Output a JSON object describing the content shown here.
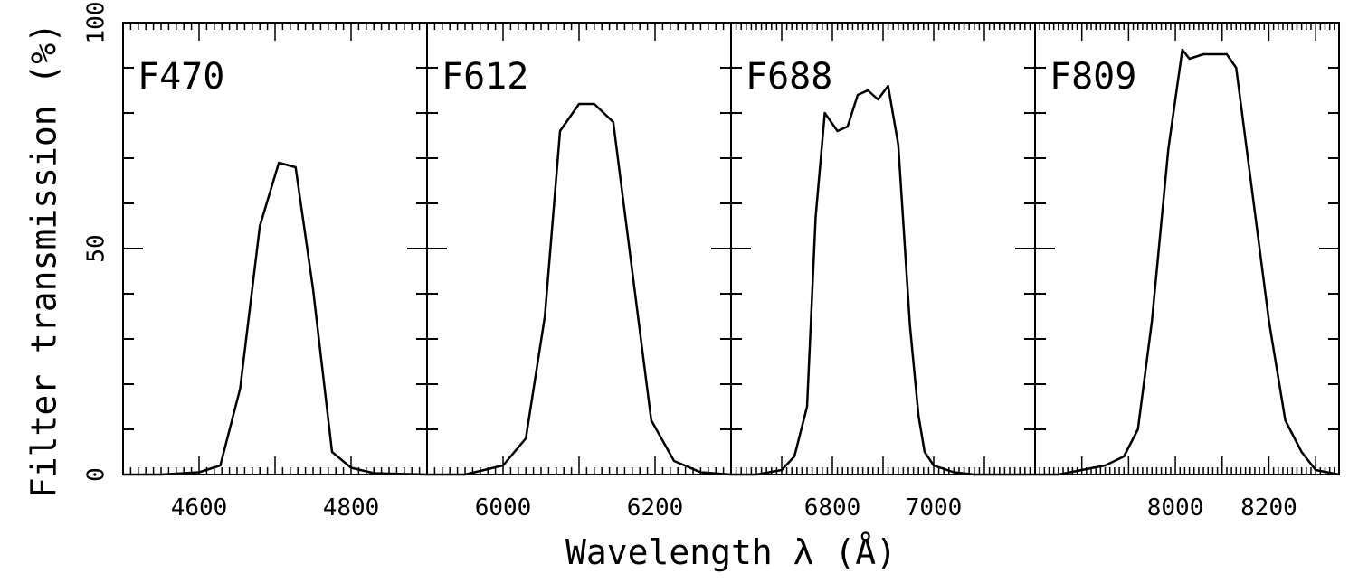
{
  "chart_data": {
    "type": "line",
    "ylabel": "Filter transmission (%)",
    "xlabel": "Wavelength λ (Å)",
    "ylim": [
      0,
      100
    ],
    "yticks": [
      0,
      50,
      100
    ],
    "grid": false,
    "line_color": "#000000",
    "panels": [
      {
        "name": "F470",
        "xlim": [
          4500,
          4900
        ],
        "xticks": [
          4600,
          4800
        ],
        "x": [
          4500,
          4550,
          4600,
          4628,
          4654,
          4680,
          4705,
          4727,
          4750,
          4775,
          4800,
          4830,
          4900
        ],
        "y": [
          0,
          0,
          0.5,
          2,
          19,
          55,
          69,
          68,
          41,
          5,
          1.5,
          0.3,
          0
        ]
      },
      {
        "name": "F612",
        "xlim": [
          5900,
          6300
        ],
        "xticks": [
          6000,
          6200
        ],
        "x": [
          5900,
          5950,
          6000,
          6030,
          6055,
          6075,
          6100,
          6120,
          6145,
          6170,
          6195,
          6225,
          6260,
          6300
        ],
        "y": [
          0,
          0,
          2,
          8,
          35,
          76,
          82,
          82,
          78,
          45,
          12,
          3,
          0.5,
          0
        ]
      },
      {
        "name": "F688",
        "xlim": [
          6600,
          7200
        ],
        "xticks": [
          6800,
          7000
        ],
        "x": [
          6600,
          6650,
          6700,
          6725,
          6750,
          6767,
          6785,
          6810,
          6830,
          6850,
          6870,
          6890,
          6910,
          6930,
          6953,
          6970,
          6982,
          7000,
          7040,
          7080,
          7130,
          7200
        ],
        "y": [
          0,
          0,
          1,
          4,
          15,
          57,
          80,
          76,
          77,
          84,
          85,
          83,
          86,
          73,
          33,
          13,
          5,
          2,
          0.5,
          0,
          0,
          0
        ]
      },
      {
        "name": "F809",
        "xlim": [
          7700,
          8350
        ],
        "xticks": [
          8000,
          8200
        ],
        "x": [
          7700,
          7750,
          7800,
          7850,
          7890,
          7920,
          7950,
          7985,
          8015,
          8030,
          8060,
          8110,
          8130,
          8170,
          8200,
          8235,
          8270,
          8300,
          8350
        ],
        "y": [
          0,
          0,
          1,
          2,
          4,
          10,
          34,
          72,
          94,
          92,
          93,
          93,
          90,
          58,
          34,
          12,
          5,
          1,
          0
        ]
      }
    ]
  }
}
